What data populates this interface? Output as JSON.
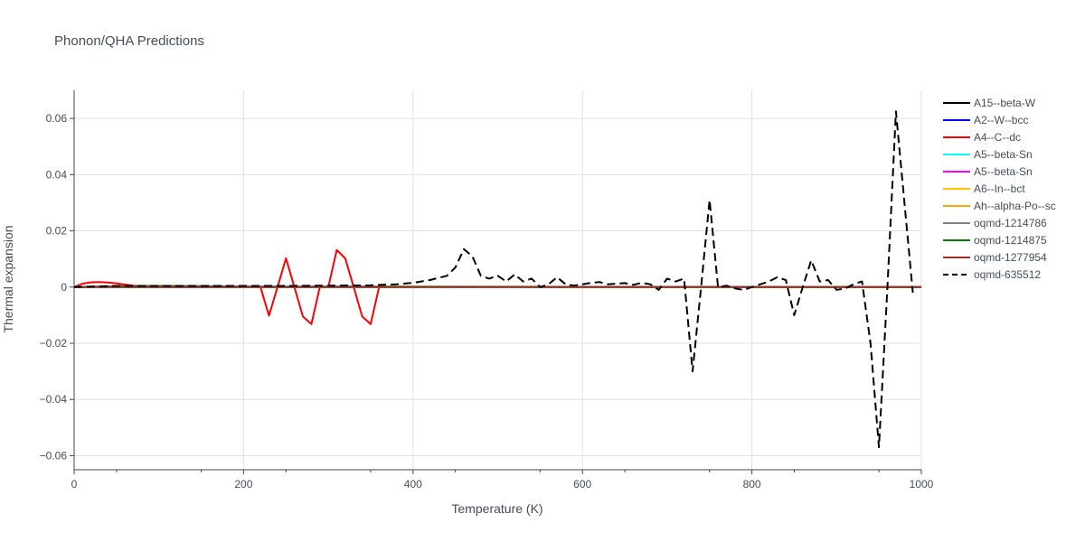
{
  "chart_data": {
    "type": "line",
    "title": "Phonon/QHA Predictions",
    "xlabel": "Temperature (K)",
    "ylabel": "Thermal expansion",
    "xlim": [
      0,
      1000
    ],
    "ylim": [
      -0.065,
      0.07
    ],
    "x_ticks": [
      0,
      200,
      400,
      600,
      800,
      1000
    ],
    "x_tick_labels": [
      "0",
      "200",
      "400",
      "600",
      "800",
      "1000"
    ],
    "y_ticks": [
      -0.06,
      -0.04,
      -0.02,
      0,
      0.02,
      0.04,
      0.06
    ],
    "y_tick_labels": [
      "−0.06",
      "−0.04",
      "−0.02",
      "0",
      "0.02",
      "0.04",
      "0.06"
    ],
    "grid": true,
    "legend_position": "right",
    "series": [
      {
        "name": "A15--beta-W",
        "color": "#000000",
        "dash": "solid",
        "x": [
          0,
          1000
        ],
        "y": [
          0,
          0
        ]
      },
      {
        "name": "A2--W--bcc",
        "color": "#0000ff",
        "dash": "solid",
        "x": [
          0,
          1000
        ],
        "y": [
          0,
          0
        ]
      },
      {
        "name": "A4--C--dc",
        "color": "#ff0000",
        "dash": "solid",
        "x": [
          0,
          10,
          20,
          30,
          40,
          50,
          60,
          70,
          80,
          100,
          150,
          200,
          220,
          230,
          240,
          250,
          260,
          270,
          280,
          290,
          300,
          310,
          320,
          330,
          340,
          350,
          360,
          400,
          1000
        ],
        "y": [
          0,
          0.0012,
          0.0017,
          0.0018,
          0.0016,
          0.0013,
          0.0009,
          0.0005,
          0.0003,
          0.0002,
          0.0002,
          0.0002,
          0,
          -0.0102,
          0,
          0.0102,
          0,
          -0.0105,
          -0.0132,
          0,
          0,
          0.0132,
          0.0102,
          0,
          -0.0105,
          -0.0132,
          0,
          0,
          0
        ]
      },
      {
        "name": "A5--beta-Sn",
        "color": "#00ffff",
        "dash": "solid",
        "x": [
          0,
          1000
        ],
        "y": [
          0,
          0
        ]
      },
      {
        "name": "A5--beta-Sn",
        "color": "#ff00ff",
        "dash": "solid",
        "x": [
          0,
          1000
        ],
        "y": [
          0,
          0
        ]
      },
      {
        "name": "A6--In--bct",
        "color": "#ffc000",
        "dash": "solid",
        "x": [
          0,
          1000
        ],
        "y": [
          0,
          0
        ]
      },
      {
        "name": "Ah--alpha-Po--sc",
        "color": "#ffa500",
        "dash": "solid",
        "x": [
          0,
          1000
        ],
        "y": [
          0,
          0
        ]
      },
      {
        "name": "oqmd-1214786",
        "color": "#808080",
        "dash": "solid",
        "x": [
          0,
          1000
        ],
        "y": [
          0,
          0
        ]
      },
      {
        "name": "oqmd-1214875",
        "color": "#008000",
        "dash": "solid",
        "x": [
          0,
          50,
          100,
          150,
          200,
          1000
        ],
        "y": [
          0,
          0.0003,
          0.0004,
          0.0003,
          0.0002,
          0
        ]
      },
      {
        "name": "oqmd-1277954",
        "color": "#a52a2a",
        "dash": "solid",
        "x": [
          0,
          1000
        ],
        "y": [
          0,
          0
        ]
      },
      {
        "name": "oqmd-635512",
        "color": "#000000",
        "dash": "dash",
        "x": [
          0,
          50,
          100,
          150,
          200,
          250,
          300,
          350,
          380,
          400,
          420,
          440,
          450,
          460,
          470,
          480,
          490,
          500,
          510,
          520,
          530,
          540,
          550,
          560,
          570,
          580,
          590,
          600,
          610,
          620,
          630,
          640,
          650,
          660,
          670,
          680,
          690,
          700,
          710,
          720,
          730,
          740,
          750,
          760,
          770,
          780,
          790,
          800,
          810,
          820,
          830,
          840,
          850,
          860,
          870,
          880,
          890,
          900,
          910,
          920,
          930,
          940,
          950,
          960,
          970,
          980,
          990
        ],
        "y": [
          0,
          0.0004,
          0.0004,
          0.0004,
          0.0004,
          0.0004,
          0.0005,
          0.0006,
          0.001,
          0.0015,
          0.0025,
          0.004,
          0.007,
          0.0135,
          0.011,
          0.004,
          0.003,
          0.004,
          0.002,
          0.0045,
          0.002,
          0.003,
          0,
          0.001,
          0.0035,
          0.001,
          0.0005,
          0.001,
          0.0015,
          0.0018,
          0.001,
          0.0012,
          0.0014,
          0.0008,
          0.0015,
          0.001,
          -0.001,
          0.003,
          0.002,
          0.003,
          -0.03,
          0,
          0.031,
          0,
          0.0005,
          -0.0005,
          -0.001,
          0,
          0.001,
          0.002,
          0.0035,
          0.0025,
          -0.01,
          0,
          0.0095,
          0.002,
          0.0025,
          -0.001,
          -0.0005,
          0.001,
          0.002,
          -0.02,
          -0.057,
          0,
          0.0625,
          0.03,
          -0.002
        ]
      }
    ]
  }
}
